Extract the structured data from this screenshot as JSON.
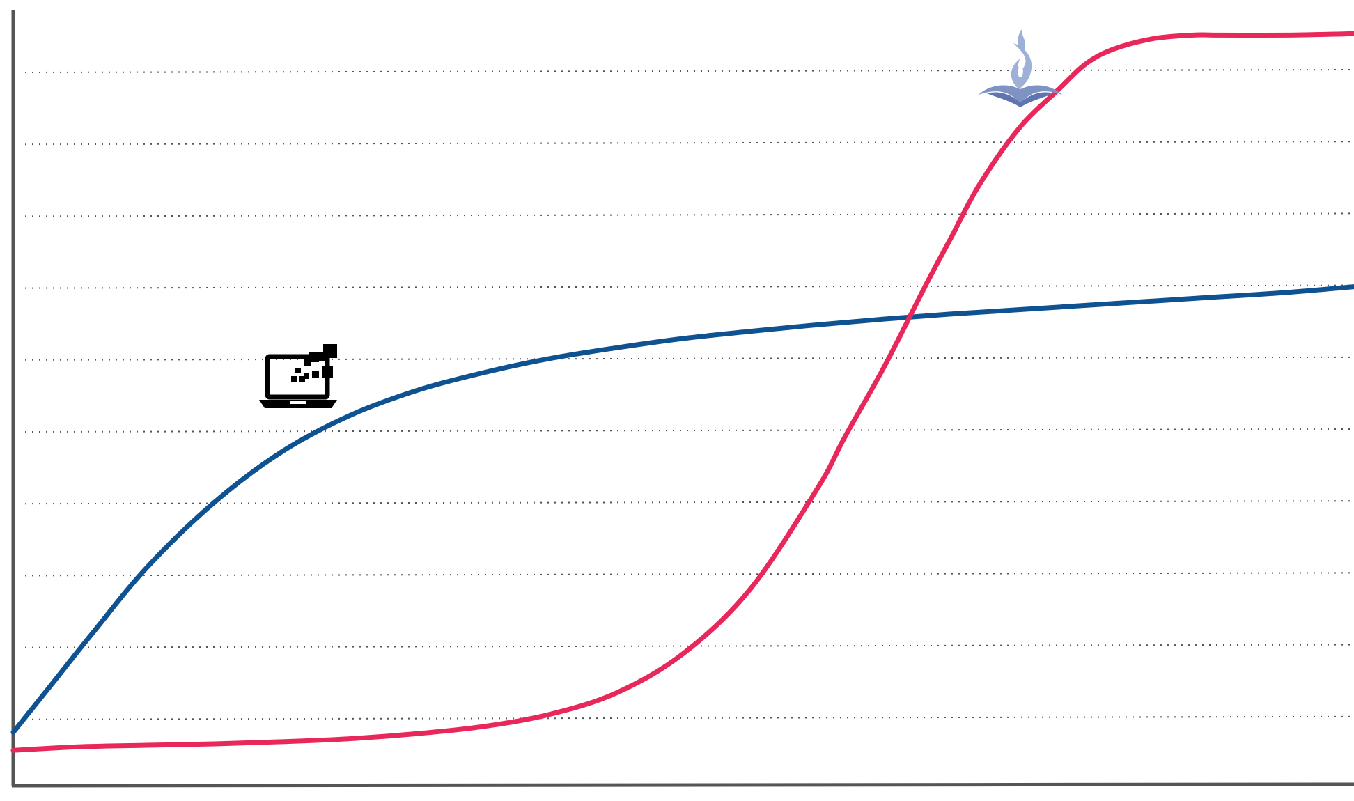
{
  "chart_data": {
    "type": "line",
    "title": "",
    "xlabel": "",
    "ylabel": "",
    "xlim": [
      0,
      100
    ],
    "ylim": [
      0,
      11
    ],
    "grid": true,
    "gridlines_y": [
      1,
      2,
      3,
      4,
      5,
      6,
      7,
      8,
      9,
      10
    ],
    "legend": "none",
    "series": [
      {
        "color": "#0f5291",
        "icon": "laptop-digital-icon",
        "x": [
          0,
          3,
          6,
          10,
          15,
          20,
          25,
          30,
          35,
          40,
          45,
          50,
          55,
          60,
          65,
          70,
          75,
          80,
          85,
          90,
          95,
          100
        ],
        "y": [
          0.8,
          1.5,
          2.2,
          3.1,
          4.0,
          4.7,
          5.2,
          5.55,
          5.8,
          6.0,
          6.15,
          6.28,
          6.38,
          6.47,
          6.55,
          6.62,
          6.68,
          6.74,
          6.8,
          6.86,
          6.92,
          7.0
        ]
      },
      {
        "color": "#e8285a",
        "icon": "book-flame-icon",
        "x": [
          0,
          5,
          10,
          15,
          20,
          25,
          30,
          35,
          40,
          45,
          50,
          55,
          60,
          62,
          65,
          68,
          70,
          72,
          75,
          78,
          80,
          82,
          85,
          88,
          90,
          95,
          100
        ],
        "y": [
          0.55,
          0.6,
          0.62,
          0.64,
          0.67,
          0.71,
          0.78,
          0.88,
          1.05,
          1.35,
          1.9,
          2.8,
          4.2,
          4.9,
          5.9,
          7.0,
          7.7,
          8.4,
          9.2,
          9.75,
          10.1,
          10.3,
          10.45,
          10.5,
          10.5,
          10.5,
          10.52
        ]
      }
    ]
  }
}
